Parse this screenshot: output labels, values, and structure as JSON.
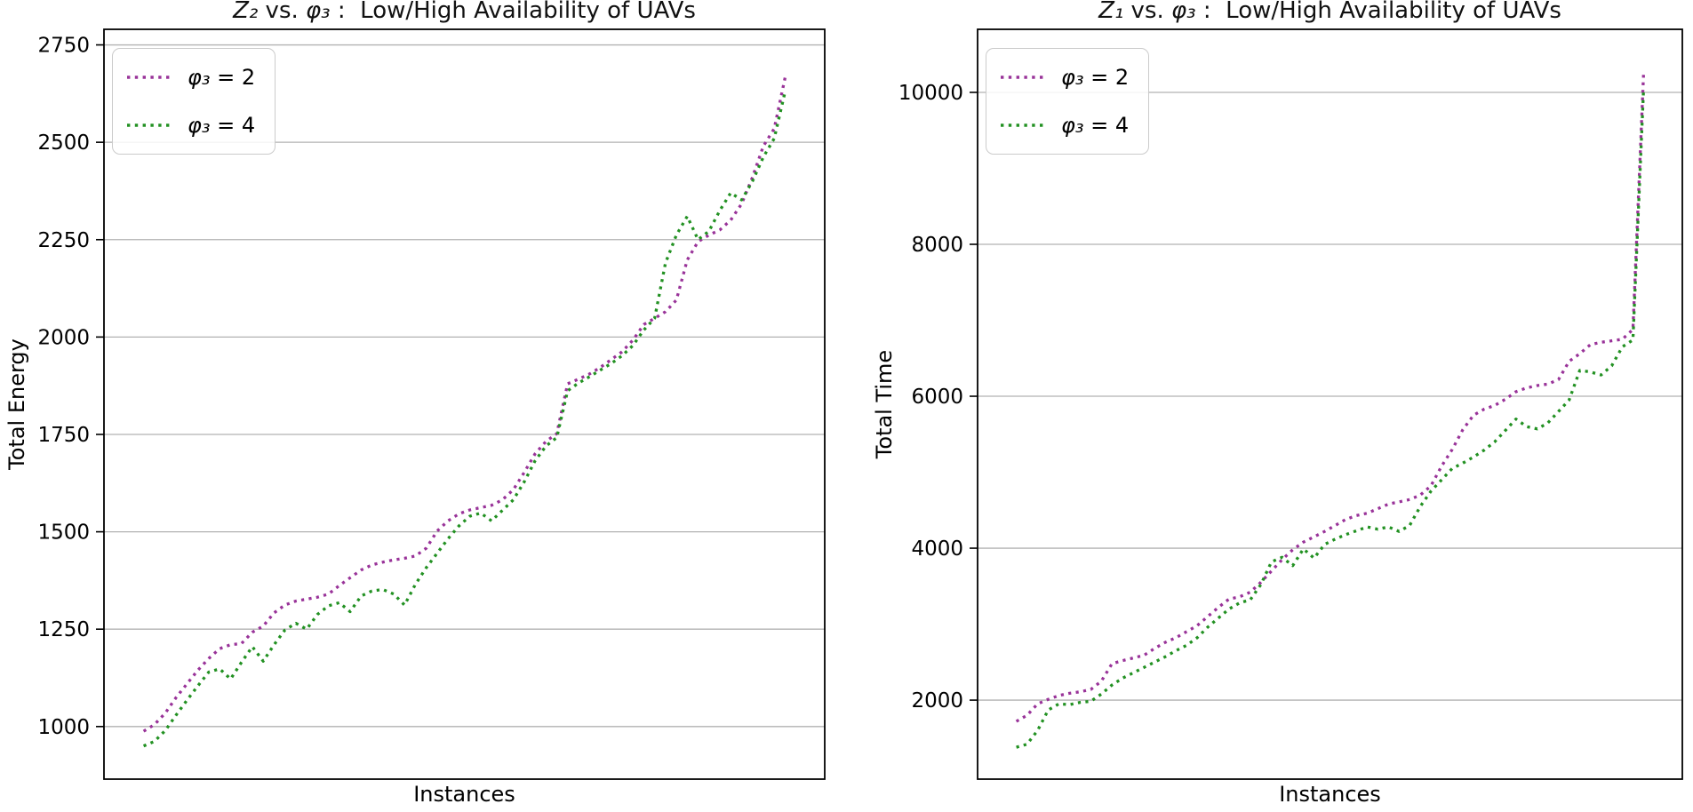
{
  "figure": {
    "background": "#ffffff",
    "grid_color": "#b2b2b2",
    "spine_color": "#000000"
  },
  "chart_data": [
    {
      "type": "line",
      "title": "Z₂ vs. φ₃ :  Low/High Availability of UAVs",
      "title_var": "Z₂",
      "title_mid": " vs. ",
      "title_sym": "φ₃",
      "title_tail": " :  Low/High Availability of UAVs",
      "xlabel": "Instances",
      "ylabel": "Total Energy",
      "ylim": [
        865,
        2790
      ],
      "yticks": [
        1000,
        1250,
        1500,
        1750,
        2000,
        2250,
        2500,
        2750
      ],
      "x_count": 60,
      "grid": true,
      "legend_loc": "upper left",
      "line_style": "dotted",
      "series": [
        {
          "name": "φ₃ = 2",
          "name_sym": "φ₃",
          "name_rest": " = 2",
          "color": "#993399",
          "values": [
            988,
            1005,
            1035,
            1075,
            1110,
            1145,
            1175,
            1200,
            1210,
            1213,
            1242,
            1258,
            1292,
            1312,
            1322,
            1327,
            1332,
            1340,
            1362,
            1382,
            1402,
            1415,
            1422,
            1428,
            1432,
            1438,
            1458,
            1502,
            1528,
            1546,
            1556,
            1562,
            1568,
            1582,
            1608,
            1652,
            1700,
            1732,
            1752,
            1880,
            1892,
            1905,
            1922,
            1942,
            1962,
            1992,
            2032,
            2048,
            2065,
            2095,
            2198,
            2245,
            2262,
            2275,
            2300,
            2342,
            2410,
            2490,
            2535,
            2666
          ]
        },
        {
          "name": "φ₃ = 4",
          "name_sym": "φ₃",
          "name_rest": " = 4",
          "color": "#229122",
          "values": [
            950,
            962,
            990,
            1030,
            1068,
            1105,
            1140,
            1148,
            1122,
            1165,
            1205,
            1168,
            1210,
            1248,
            1265,
            1250,
            1288,
            1310,
            1318,
            1295,
            1335,
            1348,
            1352,
            1340,
            1312,
            1365,
            1408,
            1445,
            1482,
            1515,
            1540,
            1548,
            1528,
            1555,
            1582,
            1628,
            1682,
            1720,
            1742,
            1862,
            1882,
            1898,
            1915,
            1932,
            1952,
            1978,
            2018,
            2048,
            2190,
            2262,
            2310,
            2250,
            2272,
            2325,
            2370,
            2352,
            2400,
            2462,
            2510,
            2630
          ]
        }
      ]
    },
    {
      "type": "line",
      "title": "Z₁ vs. φ₃ :  Low/High Availability of UAVs",
      "title_var": "Z₁",
      "title_mid": " vs. ",
      "title_sym": "φ₃",
      "title_tail": " :  Low/High Availability of UAVs",
      "xlabel": "Instances",
      "ylabel": "Total Time",
      "ylim": [
        960,
        10830
      ],
      "yticks": [
        2000,
        4000,
        6000,
        8000,
        10000
      ],
      "x_count": 60,
      "grid": true,
      "legend_loc": "upper left",
      "line_style": "dotted",
      "series": [
        {
          "name": "φ₃ = 2",
          "name_sym": "φ₃",
          "name_rest": " = 2",
          "color": "#993399",
          "values": [
            1720,
            1800,
            1950,
            2010,
            2060,
            2090,
            2110,
            2140,
            2250,
            2480,
            2520,
            2555,
            2590,
            2680,
            2760,
            2820,
            2900,
            2980,
            3100,
            3220,
            3330,
            3360,
            3420,
            3550,
            3700,
            3850,
            3980,
            4080,
            4150,
            4220,
            4300,
            4380,
            4430,
            4460,
            4520,
            4580,
            4610,
            4640,
            4700,
            4820,
            5080,
            5300,
            5560,
            5750,
            5830,
            5880,
            5960,
            6060,
            6110,
            6140,
            6160,
            6220,
            6460,
            6560,
            6680,
            6710,
            6730,
            6750,
            6880,
            10250
          ]
        },
        {
          "name": "φ₃ = 4",
          "name_sym": "φ₃",
          "name_rest": " = 4",
          "color": "#229122",
          "values": [
            1380,
            1420,
            1600,
            1870,
            1950,
            1940,
            1970,
            1985,
            2080,
            2200,
            2290,
            2360,
            2430,
            2500,
            2570,
            2650,
            2720,
            2820,
            2960,
            3080,
            3200,
            3280,
            3320,
            3520,
            3820,
            3880,
            3770,
            3990,
            3870,
            4050,
            4120,
            4180,
            4230,
            4280,
            4250,
            4280,
            4220,
            4300,
            4550,
            4750,
            4900,
            5050,
            5120,
            5200,
            5290,
            5400,
            5550,
            5700,
            5600,
            5570,
            5650,
            5800,
            5950,
            6340,
            6320,
            6280,
            6400,
            6650,
            6740,
            10050
          ]
        }
      ]
    }
  ]
}
